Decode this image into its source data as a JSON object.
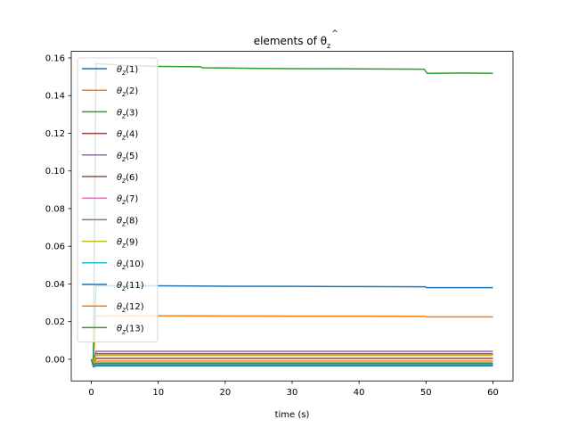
{
  "chart_data": {
    "type": "line",
    "title_prefix": "elements of ",
    "title_symbol": "θ",
    "title_hat": "^",
    "title_subscript": "z",
    "xlabel": "time (s)",
    "ylabel": "",
    "xlim": [
      -3,
      63
    ],
    "ylim": [
      -0.0115,
      0.1635
    ],
    "xticks": [
      0,
      10,
      20,
      30,
      40,
      50,
      60
    ],
    "yticks": [
      0.0,
      0.02,
      0.04,
      0.06,
      0.08,
      0.1,
      0.12,
      0.14,
      0.16
    ],
    "ytick_labels": [
      "0.00",
      "0.02",
      "0.04",
      "0.06",
      "0.08",
      "0.10",
      "0.12",
      "0.14",
      "0.16"
    ],
    "legend_position": "upper-left",
    "series": [
      {
        "name": "θz(1)",
        "label_symbol": "θ",
        "label_sub": "z",
        "label_index": "(1)",
        "color": "#1f77b4",
        "points": [
          [
            0,
            0
          ],
          [
            0.3,
            -0.002
          ],
          [
            0.7,
            0.039
          ],
          [
            10,
            0.039
          ],
          [
            20,
            0.0388
          ],
          [
            30,
            0.0387
          ],
          [
            40,
            0.0386
          ],
          [
            49.9,
            0.0385
          ],
          [
            50.1,
            0.038
          ],
          [
            60,
            0.038
          ]
        ]
      },
      {
        "name": "θz(2)",
        "label_symbol": "θ",
        "label_sub": "z",
        "label_index": "(2)",
        "color": "#ff7f0e",
        "points": [
          [
            0,
            0
          ],
          [
            0.3,
            -0.001
          ],
          [
            0.7,
            0.023
          ],
          [
            10,
            0.0231
          ],
          [
            20,
            0.023
          ],
          [
            30,
            0.0229
          ],
          [
            40,
            0.0229
          ],
          [
            49.9,
            0.0228
          ],
          [
            50.1,
            0.0225
          ],
          [
            60,
            0.0225
          ]
        ]
      },
      {
        "name": "θz(3)",
        "label_symbol": "θ",
        "label_sub": "z",
        "label_index": "(3)",
        "color": "#2ca02c",
        "points": [
          [
            0,
            0
          ],
          [
            0.3,
            -0.003
          ],
          [
            0.7,
            0.157
          ],
          [
            5,
            0.156
          ],
          [
            10,
            0.1555
          ],
          [
            16.3,
            0.1553
          ],
          [
            16.6,
            0.1548
          ],
          [
            20,
            0.1547
          ],
          [
            23.5,
            0.1545
          ],
          [
            30,
            0.1543
          ],
          [
            40,
            0.1542
          ],
          [
            49.7,
            0.154
          ],
          [
            50.2,
            0.1518
          ],
          [
            55,
            0.152
          ],
          [
            60,
            0.1518
          ]
        ]
      },
      {
        "name": "θz(4)",
        "label_symbol": "θ",
        "label_sub": "z",
        "label_index": "(4)",
        "color": "#d62728",
        "points": [
          [
            0,
            0
          ],
          [
            0.3,
            -0.002
          ],
          [
            0.7,
            0.0005
          ],
          [
            30,
            0.0005
          ],
          [
            60,
            0.0005
          ]
        ]
      },
      {
        "name": "θz(5)",
        "label_symbol": "θ",
        "label_sub": "z",
        "label_index": "(5)",
        "color": "#9467bd",
        "points": [
          [
            0,
            0
          ],
          [
            0.3,
            -0.002
          ],
          [
            0.7,
            0.0042
          ],
          [
            30,
            0.0042
          ],
          [
            60,
            0.0042
          ]
        ]
      },
      {
        "name": "θz(6)",
        "label_symbol": "θ",
        "label_sub": "z",
        "label_index": "(6)",
        "color": "#8c564b",
        "points": [
          [
            0,
            0
          ],
          [
            0.3,
            -0.002
          ],
          [
            0.7,
            0.003
          ],
          [
            30,
            0.003
          ],
          [
            60,
            0.003
          ]
        ]
      },
      {
        "name": "θz(7)",
        "label_symbol": "θ",
        "label_sub": "z",
        "label_index": "(7)",
        "color": "#e377c2",
        "points": [
          [
            0,
            0
          ],
          [
            0.3,
            -0.002
          ],
          [
            0.7,
            0.0025
          ],
          [
            30,
            0.0025
          ],
          [
            60,
            0.0025
          ]
        ]
      },
      {
        "name": "θz(8)",
        "label_symbol": "θ",
        "label_sub": "z",
        "label_index": "(8)",
        "color": "#7f7f7f",
        "points": [
          [
            0,
            0
          ],
          [
            0.3,
            -0.003
          ],
          [
            0.7,
            -0.0025
          ],
          [
            30,
            -0.0025
          ],
          [
            60,
            -0.0025
          ]
        ]
      },
      {
        "name": "θz(9)",
        "label_symbol": "θ",
        "label_sub": "z",
        "label_index": "(9)",
        "color": "#bcbd22",
        "points": [
          [
            0,
            0
          ],
          [
            0.3,
            -0.002
          ],
          [
            0.7,
            0.002
          ],
          [
            30,
            0.002
          ],
          [
            60,
            0.002
          ]
        ]
      },
      {
        "name": "θz(10)",
        "label_symbol": "θ",
        "label_sub": "z",
        "label_index": "(10)",
        "color": "#17becf",
        "points": [
          [
            0,
            0
          ],
          [
            0.3,
            -0.003
          ],
          [
            0.7,
            -0.003
          ],
          [
            30,
            -0.003
          ],
          [
            60,
            -0.003
          ]
        ]
      },
      {
        "name": "θz(11)",
        "label_symbol": "θ",
        "label_sub": "z",
        "label_index": "(11)",
        "color": "#1f77b4",
        "points": [
          [
            0,
            0
          ],
          [
            0.3,
            -0.004
          ],
          [
            0.7,
            -0.0035
          ],
          [
            30,
            -0.0035
          ],
          [
            60,
            -0.0035
          ]
        ]
      },
      {
        "name": "θz(12)",
        "label_symbol": "θ",
        "label_sub": "z",
        "label_index": "(12)",
        "color": "#ff7f0e",
        "points": [
          [
            0,
            0
          ],
          [
            0.3,
            -0.002
          ],
          [
            0.7,
            -0.001
          ],
          [
            30,
            -0.001
          ],
          [
            60,
            -0.001
          ]
        ]
      },
      {
        "name": "θz(13)",
        "label_symbol": "θ",
        "label_sub": "z",
        "label_index": "(13)",
        "color": "#2ca02c",
        "points": [
          [
            0,
            0
          ],
          [
            0.3,
            -0.003
          ],
          [
            0.7,
            -0.002
          ],
          [
            30,
            -0.002
          ],
          [
            60,
            -0.002
          ]
        ]
      }
    ]
  }
}
